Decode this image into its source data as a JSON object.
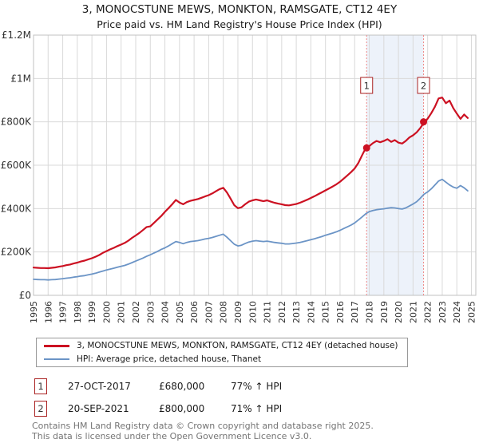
{
  "chart_data": {
    "type": "line",
    "title": "3, MONOCSTUNE MEWS, MONKTON, RAMSGATE, CT12 4EY",
    "subtitle": "Price paid vs. HM Land Registry's House Price Index (HPI)",
    "x_start": 1995.0,
    "x_step": 0.25,
    "x_axis": {
      "range": [
        1995,
        2025.3
      ],
      "tick_years": [
        1995,
        1996,
        1997,
        1998,
        1999,
        2000,
        2001,
        2002,
        2003,
        2004,
        2005,
        2006,
        2007,
        2008,
        2009,
        2010,
        2011,
        2012,
        2013,
        2014,
        2015,
        2016,
        2017,
        2018,
        2019,
        2020,
        2021,
        2022,
        2023,
        2024,
        2025
      ]
    },
    "y_axis": {
      "range_gbp_k": [
        0,
        1200
      ],
      "tick_values_gbp_k": [
        0,
        200,
        400,
        600,
        800,
        1000,
        1200
      ],
      "tick_labels": [
        "£0",
        "£200K",
        "£400K",
        "£600K",
        "£800K",
        "£1M",
        "£1.2M"
      ],
      "grid": true
    },
    "series": [
      {
        "name": "3, MONOCSTUNE MEWS, MONKTON, RAMSGATE, CT12 4EY (detached house)",
        "color": "#cc1122",
        "values_gbp_k": [
          128,
          127,
          126,
          126,
          125,
          127,
          129,
          132,
          135,
          139,
          142,
          147,
          151,
          156,
          160,
          166,
          171,
          178,
          186,
          196,
          204,
          212,
          219,
          227,
          234,
          242,
          252,
          265,
          276,
          288,
          301,
          315,
          318,
          334,
          350,
          366,
          385,
          402,
          420,
          440,
          428,
          420,
          430,
          436,
          440,
          444,
          450,
          456,
          462,
          470,
          480,
          490,
          496,
          474,
          446,
          416,
          402,
          406,
          420,
          432,
          438,
          442,
          438,
          434,
          438,
          432,
          427,
          423,
          420,
          416,
          415,
          418,
          421,
          427,
          434,
          441,
          449,
          457,
          466,
          475,
          484,
          493,
          502,
          512,
          524,
          538,
          553,
          568,
          585,
          610,
          645,
          678,
          688,
          702,
          712,
          706,
          712,
          720,
          708,
          716,
          704,
          700,
          712,
          728,
          738,
          752,
          772,
          796,
          815,
          840,
          870,
          908,
          912,
          886,
          898,
          864,
          838,
          814,
          834,
          818
        ]
      },
      {
        "name": "HPI: Average price, detached house, Thanet",
        "color": "#6b94c6",
        "values_gbp_k": [
          74,
          73,
          72,
          72,
          71,
          72,
          73,
          75,
          77,
          79,
          81,
          84,
          86,
          89,
          91,
          95,
          98,
          102,
          107,
          112,
          117,
          121,
          125,
          130,
          134,
          138,
          144,
          151,
          158,
          165,
          172,
          180,
          187,
          195,
          203,
          212,
          219,
          228,
          238,
          248,
          244,
          238,
          244,
          248,
          250,
          252,
          256,
          260,
          263,
          267,
          272,
          277,
          282,
          268,
          252,
          236,
          228,
          231,
          239,
          246,
          250,
          252,
          250,
          248,
          250,
          247,
          244,
          242,
          240,
          237,
          237,
          239,
          241,
          244,
          248,
          252,
          257,
          261,
          266,
          271,
          277,
          282,
          287,
          293,
          300,
          308,
          316,
          324,
          334,
          347,
          361,
          376,
          386,
          391,
          395,
          397,
          399,
          402,
          404,
          403,
          400,
          398,
          403,
          412,
          421,
          432,
          448,
          466,
          477,
          491,
          509,
          527,
          535,
          522,
          509,
          499,
          494,
          506,
          496,
          482
        ]
      }
    ],
    "sale_markers": [
      {
        "label": "1",
        "year_decimal": 2017.82,
        "price_gbp_k": 680,
        "date": "27-OCT-2017"
      },
      {
        "label": "2",
        "year_decimal": 2021.72,
        "price_gbp_k": 800,
        "date": "20-SEP-2021"
      }
    ],
    "shaded_region": {
      "from_year": 2017.82,
      "to_year": 2021.72,
      "fill": "#edf2fa"
    },
    "colors": {
      "grid": "#d9d9d9",
      "plot_border": "#c0c0c0",
      "dashed_line": "#ee8888",
      "marker_box_border": "#aa2222",
      "axis_text": "#333333",
      "marker_number_text": "#333333"
    },
    "legend_position": "bottom"
  },
  "legend": {
    "items": [
      {
        "label": "3, MONOCSTUNE MEWS, MONKTON, RAMSGATE, CT12 4EY (detached house)",
        "color": "#cc1122"
      },
      {
        "label": "HPI: Average price, detached house, Thanet",
        "color": "#6b94c6"
      }
    ]
  },
  "transactions": [
    {
      "num": "1",
      "date": "27-OCT-2017",
      "price": "£680,000",
      "hpi_diff": "77% ↑ HPI"
    },
    {
      "num": "2",
      "date": "20-SEP-2021",
      "price": "£800,000",
      "hpi_diff": "71% ↑ HPI"
    }
  ],
  "footer": {
    "line1": "Contains HM Land Registry data © Crown copyright and database right 2025.",
    "line2": "This data is licensed under the Open Government Licence v3.0."
  }
}
